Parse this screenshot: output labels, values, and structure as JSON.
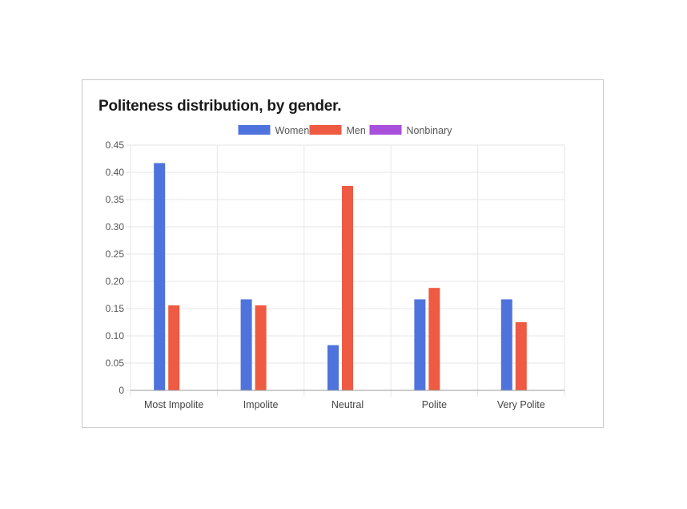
{
  "chart_data": {
    "type": "bar",
    "title": "Politeness distribution, by gender.",
    "xlabel": "",
    "ylabel": "",
    "categories": [
      "Most Impolite",
      "Impolite",
      "Neutral",
      "Polite",
      "Very Polite"
    ],
    "series": [
      {
        "name": "Women",
        "color": "#4f73dc",
        "values": [
          0.417,
          0.167,
          0.083,
          0.167,
          0.167
        ]
      },
      {
        "name": "Men",
        "color": "#ee5a42",
        "values": [
          0.156,
          0.156,
          0.375,
          0.188,
          0.125
        ]
      },
      {
        "name": "Nonbinary",
        "color": "#a84fdc",
        "values": [
          0,
          0,
          0,
          0,
          0
        ]
      }
    ],
    "ylim": [
      0,
      0.45
    ],
    "yticks": [
      "0",
      "0.05",
      "0.10",
      "0.15",
      "0.20",
      "0.25",
      "0.30",
      "0.35",
      "0.40",
      "0.45"
    ],
    "grid": true,
    "legend": "top-center"
  }
}
